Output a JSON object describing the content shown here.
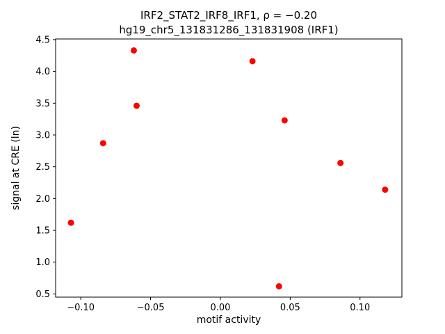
{
  "chart_data": {
    "type": "scatter",
    "title": "IRF2_STAT2_IRF8_IRF1, ρ = −0.20",
    "subtitle": "hg19_chr5_131831286_131831908 (IRF1)",
    "xlabel": "motif activity",
    "ylabel": "signal at CRE (ln)",
    "xlim": [
      -0.118,
      0.13
    ],
    "ylim": [
      0.45,
      4.51
    ],
    "xticks": [
      -0.1,
      -0.05,
      0.0,
      0.05,
      0.1
    ],
    "xtick_labels": [
      "−0.10",
      "−0.05",
      "0.00",
      "0.05",
      "0.10"
    ],
    "yticks": [
      0.5,
      1.0,
      1.5,
      2.0,
      2.5,
      3.0,
      3.5,
      4.0,
      4.5
    ],
    "ytick_labels": [
      "0.5",
      "1.0",
      "1.5",
      "2.0",
      "2.5",
      "3.0",
      "3.5",
      "4.0",
      "4.5"
    ],
    "marker_color": "#ff0000",
    "grid": false,
    "legend": null,
    "points": [
      {
        "x": -0.107,
        "y": 1.62
      },
      {
        "x": -0.084,
        "y": 2.87
      },
      {
        "x": -0.062,
        "y": 4.33
      },
      {
        "x": -0.06,
        "y": 3.46
      },
      {
        "x": 0.023,
        "y": 4.16
      },
      {
        "x": 0.042,
        "y": 0.62
      },
      {
        "x": 0.046,
        "y": 3.23
      },
      {
        "x": 0.086,
        "y": 2.56
      },
      {
        "x": 0.118,
        "y": 2.14
      }
    ]
  }
}
